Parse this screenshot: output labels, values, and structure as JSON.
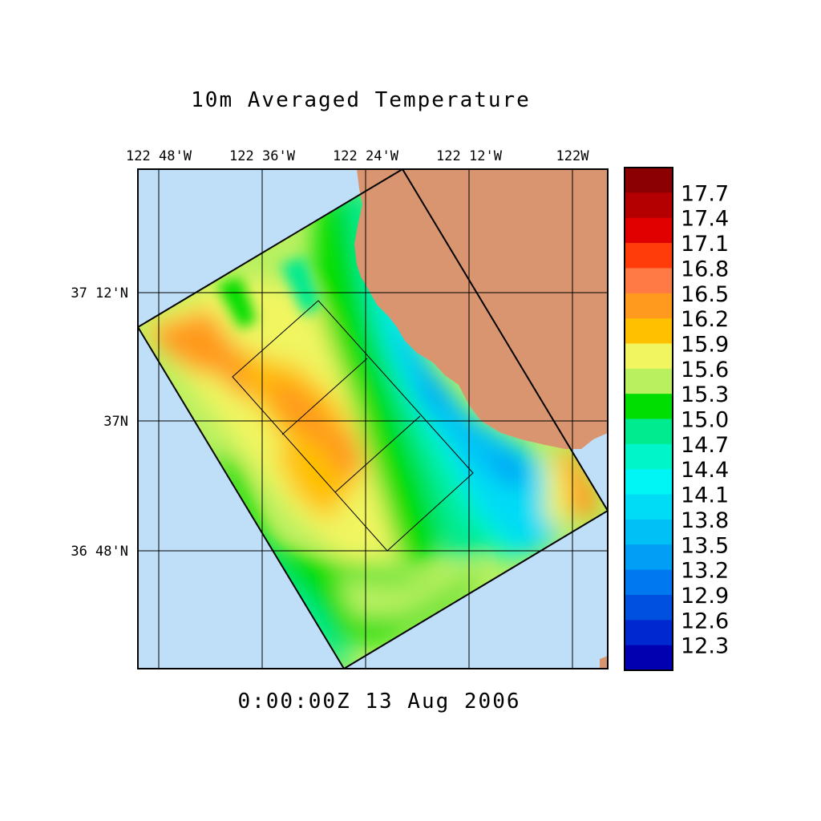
{
  "title": "10m Averaged Temperature",
  "timestamp": "0:00:00Z  13 Aug 2006",
  "lon_ticks": [
    "122 48'W",
    "122 36'W",
    "122 24'W",
    "122 12'W",
    "122W"
  ],
  "lat_ticks": [
    "37 12'N",
    "37N",
    "36 48'N"
  ],
  "colorbar": {
    "labels": [
      "17.7",
      "17.4",
      "17.1",
      "16.8",
      "16.5",
      "16.2",
      "15.9",
      "15.6",
      "15.3",
      "15.0",
      "14.7",
      "14.4",
      "14.1",
      "13.8",
      "13.5",
      "13.2",
      "12.9",
      "12.6",
      "12.3"
    ],
    "colors": [
      "#8b0000",
      "#b40000",
      "#e00000",
      "#ff3c0a",
      "#ff7a45",
      "#ff9a1f",
      "#ffc000",
      "#f0f560",
      "#b8f060",
      "#00dd00",
      "#00ea90",
      "#00f5c8",
      "#00f5f5",
      "#00dcf5",
      "#00c0f5",
      "#009ef5",
      "#0078f0",
      "#0050e0",
      "#0028d0",
      "#0000b0"
    ]
  },
  "colors": {
    "ocean": "#bfdff8",
    "land": "#d99570"
  }
}
